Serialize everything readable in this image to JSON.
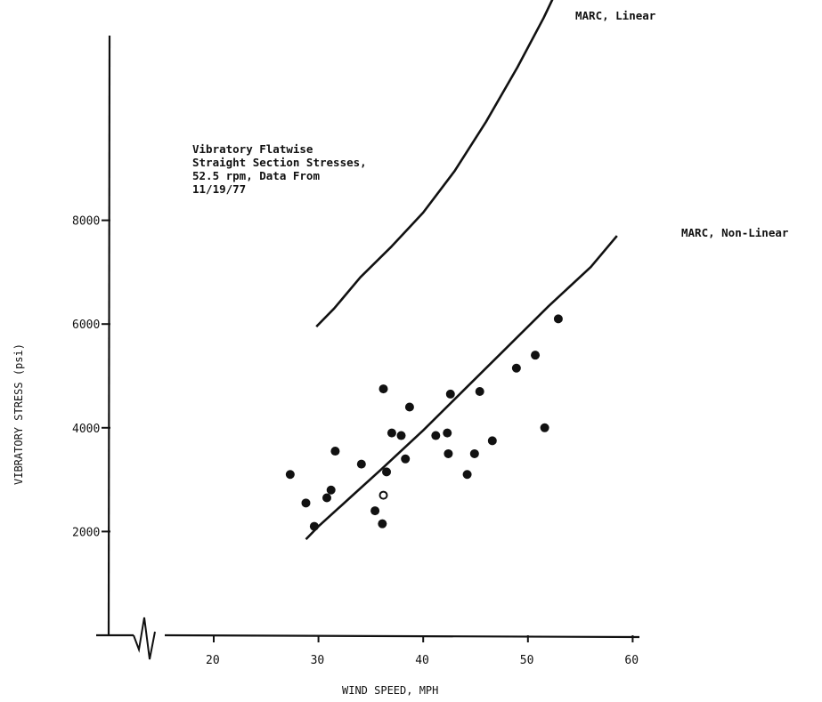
{
  "chart_data": {
    "type": "scatter",
    "title": "",
    "xlabel": "WIND SPEED, MPH",
    "ylabel": "VIBRATORY STRESS (psi)",
    "xlim": [
      15,
      61
    ],
    "ylim": [
      0,
      10500
    ],
    "x_ticks": [
      20,
      30,
      40,
      50,
      60
    ],
    "y_ticks": [
      2000,
      4000,
      6000,
      8000
    ],
    "x_tick_labels": [
      "20",
      "30",
      "40",
      "50",
      "60"
    ],
    "y_tick_labels": [
      "2000",
      "4000",
      "6000",
      "8000"
    ],
    "axis_break": true,
    "grid": false,
    "annotation": [
      "Vibratory Flatwise",
      "Straight Section Stresses,",
      "52.5 rpm, Data From",
      "11/19/77"
    ],
    "series": [
      {
        "type": "line",
        "name": "MARC, Linear",
        "points": [
          [
            29.8,
            5950
          ],
          [
            31.5,
            6300
          ],
          [
            34,
            6900
          ],
          [
            37,
            7500
          ],
          [
            40,
            8150
          ],
          [
            43,
            8950
          ],
          [
            46,
            9900
          ],
          [
            49,
            10950
          ],
          [
            51.5,
            11900
          ],
          [
            53.5,
            12750
          ]
        ]
      },
      {
        "type": "line",
        "name": "MARC, Non-Linear",
        "points": [
          [
            28.8,
            1850
          ],
          [
            30,
            2100
          ],
          [
            33,
            2650
          ],
          [
            36,
            3200
          ],
          [
            40,
            3950
          ],
          [
            44,
            4750
          ],
          [
            48,
            5550
          ],
          [
            52,
            6350
          ],
          [
            56,
            7100
          ],
          [
            58.5,
            7700
          ]
        ]
      },
      {
        "type": "scatter",
        "name": "",
        "points": [
          [
            27.3,
            3100
          ],
          [
            28.8,
            2550
          ],
          [
            29.6,
            2100
          ],
          [
            30.8,
            2650
          ],
          [
            31.2,
            2800
          ],
          [
            31.6,
            3550
          ],
          [
            34.1,
            3300
          ],
          [
            35.4,
            2400
          ],
          [
            36.1,
            2150
          ],
          [
            36.2,
            4750
          ],
          [
            36.5,
            3150
          ],
          [
            37,
            3900
          ],
          [
            37.9,
            3850
          ],
          [
            38.3,
            3400
          ],
          [
            38.7,
            4400
          ],
          [
            41.2,
            3850
          ],
          [
            42.3,
            3900
          ],
          [
            42.4,
            3500
          ],
          [
            42.6,
            4650
          ],
          [
            44.2,
            3100
          ],
          [
            44.9,
            3500
          ],
          [
            45.4,
            4700
          ],
          [
            46.6,
            3750
          ],
          [
            48.9,
            5150
          ],
          [
            50.7,
            5400
          ],
          [
            51.6,
            4000
          ],
          [
            52.9,
            6100
          ]
        ]
      },
      {
        "type": "scatter",
        "name": "",
        "hollow": true,
        "points": [
          [
            36.2,
            2700
          ]
        ]
      }
    ]
  }
}
